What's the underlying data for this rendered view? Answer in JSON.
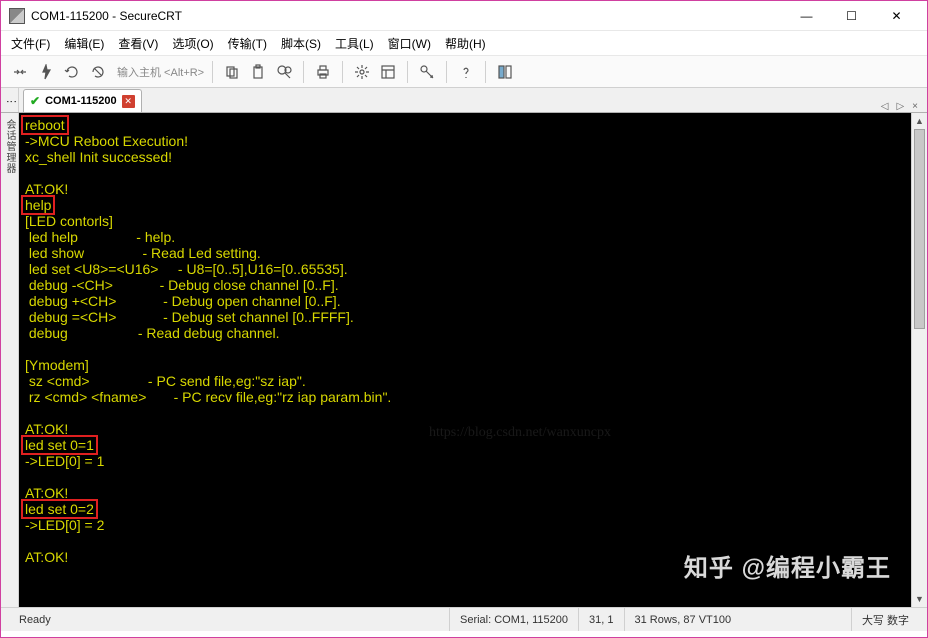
{
  "window": {
    "title": "COM1-115200 - SecureCRT",
    "min": "—",
    "max": "☐",
    "close": "✕"
  },
  "menu": {
    "file": "文件(F)",
    "edit": "编辑(E)",
    "view": "查看(V)",
    "options": "选项(O)",
    "transfer": "传输(T)",
    "script": "脚本(S)",
    "tools": "工具(L)",
    "window": "窗口(W)",
    "help": "帮助(H)"
  },
  "toolbar": {
    "hint": "输入主机 <Alt+R>"
  },
  "tab": {
    "label": "COM1-115200"
  },
  "sidebar_label": "会话管理器",
  "tabarrows": {
    "left": "◁",
    "right": "▷",
    "x": "×"
  },
  "terminal": {
    "font_family": "Consolas, 'Courier New', monospace",
    "fg": "#d8d800",
    "bg": "#000000",
    "highlight_border": "#e02020",
    "lines": [
      {
        "t": "reboot",
        "boxed": true
      },
      {
        "t": "->MCU Reboot Execution!"
      },
      {
        "t": "xc_shell Init successed!"
      },
      {
        "t": ""
      },
      {
        "t": "AT:OK!"
      },
      {
        "t": "help",
        "boxed": true
      },
      {
        "t": "[LED contorls]"
      },
      {
        "t": " led help               - help."
      },
      {
        "t": " led show               - Read Led setting."
      },
      {
        "t": " led set <U8>=<U16>     - U8=[0..5],U16=[0..65535]."
      },
      {
        "t": " debug -<CH>            - Debug close channel [0..F]."
      },
      {
        "t": " debug +<CH>            - Debug open channel [0..F]."
      },
      {
        "t": " debug =<CH>            - Debug set channel [0..FFFF]."
      },
      {
        "t": " debug                  - Read debug channel."
      },
      {
        "t": ""
      },
      {
        "t": "[Ymodem]"
      },
      {
        "t": " sz <cmd>               - PC send file,eg:\"sz iap\"."
      },
      {
        "t": " rz <cmd> <fname>       - PC recv file,eg:\"rz iap param.bin\"."
      },
      {
        "t": ""
      },
      {
        "t": "AT:OK!"
      },
      {
        "t": "led set 0=1",
        "boxed": true
      },
      {
        "t": "->LED[0] = 1"
      },
      {
        "t": ""
      },
      {
        "t": "AT:OK!"
      },
      {
        "t": "led set 0=2",
        "boxed": true
      },
      {
        "t": "->LED[0] = 2"
      },
      {
        "t": ""
      },
      {
        "t": "AT:OK!"
      }
    ]
  },
  "status": {
    "ready": "Ready",
    "serial": "Serial: COM1, 115200",
    "pos": "31,  1",
    "size": "31 Rows, 87 VT100",
    "caps": "大写 数字"
  },
  "watermark": "知乎 @编程小霸王",
  "faintmark": "https://blog.csdn.net/wanxuncpx"
}
